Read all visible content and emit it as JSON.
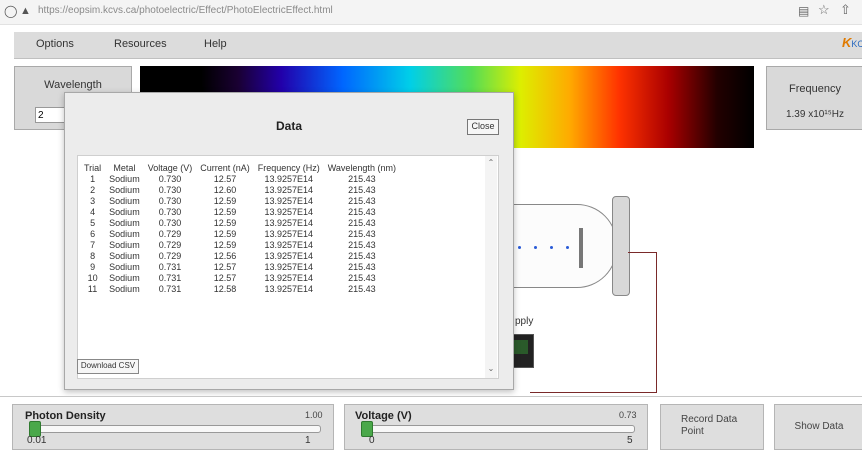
{
  "browser": {
    "url": "https://eopsim.kcvs.ca/photoelectric/Effect/PhotoElectricEffect.html",
    "icons": [
      "shield-icon",
      "lock-icon",
      "reader-icon",
      "star-icon",
      "share-icon"
    ]
  },
  "menu": {
    "items": [
      "Options",
      "Resources",
      "Help"
    ],
    "logo_mark": "K",
    "logo_text": "KCV"
  },
  "wavelength": {
    "label": "Wavelength",
    "value": "2"
  },
  "frequency": {
    "label": "Frequency",
    "value": "1.39 x10¹⁵Hz"
  },
  "apparatus": {
    "supply_label": "pply"
  },
  "dialog": {
    "title": "Data",
    "close_label": "Close",
    "csv_label": "Download CSV",
    "columns": [
      "Trial",
      "Metal",
      "Voltage (V)",
      "Current (nA)",
      "Frequency (Hz)",
      "Wavelength (nm)"
    ],
    "rows": [
      [
        "1",
        "Sodium",
        "0.730",
        "12.57",
        "13.9257E14",
        "215.43"
      ],
      [
        "2",
        "Sodium",
        "0.730",
        "12.60",
        "13.9257E14",
        "215.43"
      ],
      [
        "3",
        "Sodium",
        "0.730",
        "12.59",
        "13.9257E14",
        "215.43"
      ],
      [
        "4",
        "Sodium",
        "0.730",
        "12.59",
        "13.9257E14",
        "215.43"
      ],
      [
        "5",
        "Sodium",
        "0.730",
        "12.59",
        "13.9257E14",
        "215.43"
      ],
      [
        "6",
        "Sodium",
        "0.729",
        "12.59",
        "13.9257E14",
        "215.43"
      ],
      [
        "7",
        "Sodium",
        "0.729",
        "12.59",
        "13.9257E14",
        "215.43"
      ],
      [
        "8",
        "Sodium",
        "0.729",
        "12.56",
        "13.9257E14",
        "215.43"
      ],
      [
        "9",
        "Sodium",
        "0.731",
        "12.57",
        "13.9257E14",
        "215.43"
      ],
      [
        "10",
        "Sodium",
        "0.731",
        "12.57",
        "13.9257E14",
        "215.43"
      ],
      [
        "11",
        "Sodium",
        "0.731",
        "12.58",
        "13.9257E14",
        "215.43"
      ]
    ]
  },
  "controls": {
    "photon_density": {
      "label": "Photon Density",
      "value": "1.00",
      "min": "0.01",
      "max": "1",
      "fraction": 0.0
    },
    "voltage": {
      "label": "Voltage (V)",
      "value": "0.73",
      "min": "0",
      "max": "5",
      "fraction": 0.0
    },
    "record_label": "Record Data Point",
    "show_data_label": "Show Data"
  }
}
